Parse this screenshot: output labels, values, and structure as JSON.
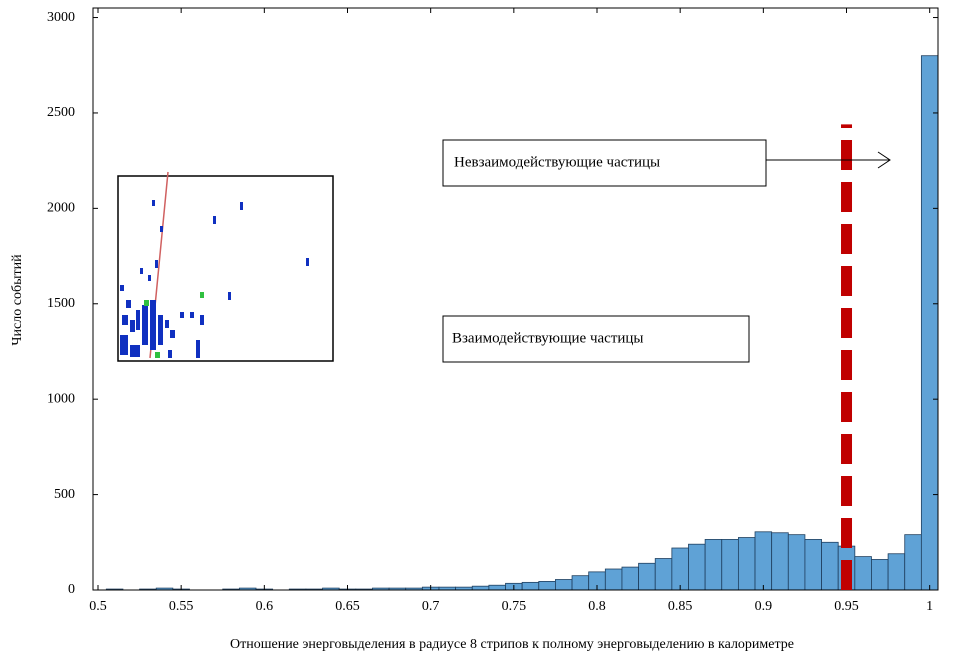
{
  "chart_data": {
    "type": "histogram",
    "xlabel": "Отношение энерговыделения в радиусе 8 стрипов к полному энерговыделению в калориметре",
    "ylabel": "Число событий",
    "bins": [
      0.495,
      0.505,
      0.515,
      0.525,
      0.535,
      0.545,
      0.555,
      0.565,
      0.575,
      0.585,
      0.595,
      0.605,
      0.615,
      0.625,
      0.635,
      0.645,
      0.655,
      0.665,
      0.675,
      0.685,
      0.695,
      0.705,
      0.715,
      0.725,
      0.735,
      0.745,
      0.755,
      0.765,
      0.775,
      0.785,
      0.795,
      0.805,
      0.815,
      0.825,
      0.835,
      0.845,
      0.855,
      0.865,
      0.875,
      0.885,
      0.895,
      0.905,
      0.915,
      0.925,
      0.935,
      0.945,
      0.955,
      0.965,
      0.975,
      0.985,
      0.995,
      1.005
    ],
    "values": [
      0,
      5,
      0,
      5,
      10,
      5,
      0,
      0,
      5,
      10,
      5,
      0,
      5,
      5,
      10,
      5,
      5,
      10,
      10,
      10,
      15,
      15,
      15,
      20,
      25,
      35,
      40,
      45,
      55,
      75,
      95,
      110,
      120,
      140,
      165,
      220,
      240,
      265,
      265,
      275,
      305,
      300,
      290,
      265,
      250,
      230,
      175,
      160,
      190,
      290,
      2800
    ],
    "color": "#5fa2d6",
    "xlim": [
      0.497,
      1.005
    ],
    "ylim": [
      0,
      3050
    ],
    "xticks": [
      0.5,
      0.55,
      0.6,
      0.65,
      0.7,
      0.75,
      0.8,
      0.85,
      0.9,
      0.95,
      1
    ],
    "yticks": [
      0,
      500,
      1000,
      1500,
      2000,
      2500,
      3000
    ],
    "vline": {
      "x": 0.95,
      "ymax": 2440,
      "color": "#c00000"
    },
    "annotations": [
      "Невзаимодействующие частицы",
      "Взаимодействующие частицы"
    ]
  }
}
